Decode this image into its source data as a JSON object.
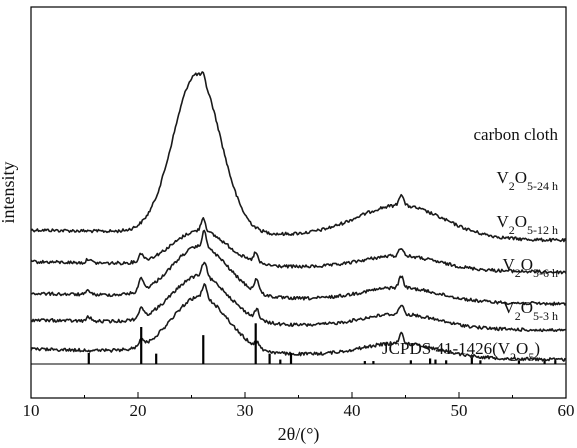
{
  "chart_data": {
    "type": "line",
    "title": "",
    "xlabel": "2θ/(°)",
    "ylabel": "intensity",
    "xlim": [
      10,
      60
    ],
    "x_ticks": [
      10,
      20,
      30,
      40,
      50,
      60
    ],
    "y_ticks": "none",
    "grid": false,
    "legend": "none",
    "series_color": "#1a1a1a",
    "series": [
      {
        "name": "carbon cloth",
        "label_parts": [
          "carbon cloth",
          "",
          "",
          ""
        ],
        "baseline": 1.7,
        "peaks": [
          [
            25.5,
            3.0,
            2.2
          ],
          [
            26.1,
            0.12,
            0.15
          ],
          [
            44.5,
            0.6,
            4.0
          ],
          [
            44.6,
            0.22,
            0.2
          ]
        ]
      },
      {
        "name": "V2O5-24 h",
        "label_parts": [
          "V",
          "2",
          "O",
          "5-24 h"
        ],
        "baseline": 1.1,
        "peaks": [
          [
            25.8,
            0.65,
            2.5
          ],
          [
            26.1,
            0.25,
            0.2
          ],
          [
            20.3,
            0.15,
            0.2
          ],
          [
            31.0,
            0.18,
            0.2
          ],
          [
            15.4,
            0.08,
            0.2
          ],
          [
            44.5,
            0.25,
            3.5
          ],
          [
            44.6,
            0.16,
            0.2
          ]
        ]
      },
      {
        "name": "V2O5-12 h",
        "label_parts": [
          "V",
          "2",
          "O",
          "5-12 h"
        ],
        "baseline": 0.5,
        "peaks": [
          [
            25.8,
            0.95,
            2.6
          ],
          [
            26.2,
            0.3,
            0.2
          ],
          [
            20.3,
            0.25,
            0.2
          ],
          [
            31.1,
            0.25,
            0.2
          ],
          [
            15.4,
            0.08,
            0.2
          ],
          [
            44.5,
            0.25,
            3.5
          ],
          [
            44.6,
            0.22,
            0.2
          ]
        ]
      },
      {
        "name": "V2O5-6 h",
        "label_parts": [
          "V",
          "2",
          "O",
          "5-6 h"
        ],
        "baseline": 0.0,
        "peaks": [
          [
            25.8,
            0.9,
            2.6
          ],
          [
            26.2,
            0.28,
            0.2
          ],
          [
            20.3,
            0.2,
            0.2
          ],
          [
            31.1,
            0.18,
            0.2
          ],
          [
            15.4,
            0.08,
            0.2
          ],
          [
            44.5,
            0.25,
            3.5
          ],
          [
            44.6,
            0.18,
            0.2
          ]
        ]
      },
      {
        "name": "V2O5-3 h",
        "label_parts": [
          "V",
          "2",
          "O",
          "5-3 h"
        ],
        "baseline": -0.55,
        "peaks": [
          [
            25.8,
            1.05,
            2.6
          ],
          [
            26.2,
            0.25,
            0.2
          ],
          [
            20.3,
            0.15,
            0.2
          ],
          [
            31.1,
            0.1,
            0.2
          ],
          [
            44.5,
            0.25,
            3.5
          ],
          [
            44.6,
            0.18,
            0.2
          ]
        ]
      }
    ],
    "reference": {
      "name": "JCPDS 41-1426(V2O5)",
      "label_parts": [
        "JCPDS 41-1426(V",
        "2",
        "O",
        "5",
        ")"
      ],
      "lines": [
        [
          15.4,
          0.3
        ],
        [
          20.3,
          1.0
        ],
        [
          21.7,
          0.28
        ],
        [
          26.1,
          0.78
        ],
        [
          31.0,
          1.1
        ],
        [
          32.3,
          0.28
        ],
        [
          33.3,
          0.12
        ],
        [
          34.3,
          0.3
        ],
        [
          41.2,
          0.08
        ],
        [
          42.0,
          0.08
        ],
        [
          45.5,
          0.1
        ],
        [
          47.3,
          0.15
        ],
        [
          47.8,
          0.12
        ],
        [
          48.8,
          0.1
        ],
        [
          51.2,
          0.18
        ],
        [
          52.0,
          0.1
        ],
        [
          55.6,
          0.1
        ],
        [
          58.0,
          0.1
        ],
        [
          59.0,
          0.1
        ]
      ]
    }
  }
}
